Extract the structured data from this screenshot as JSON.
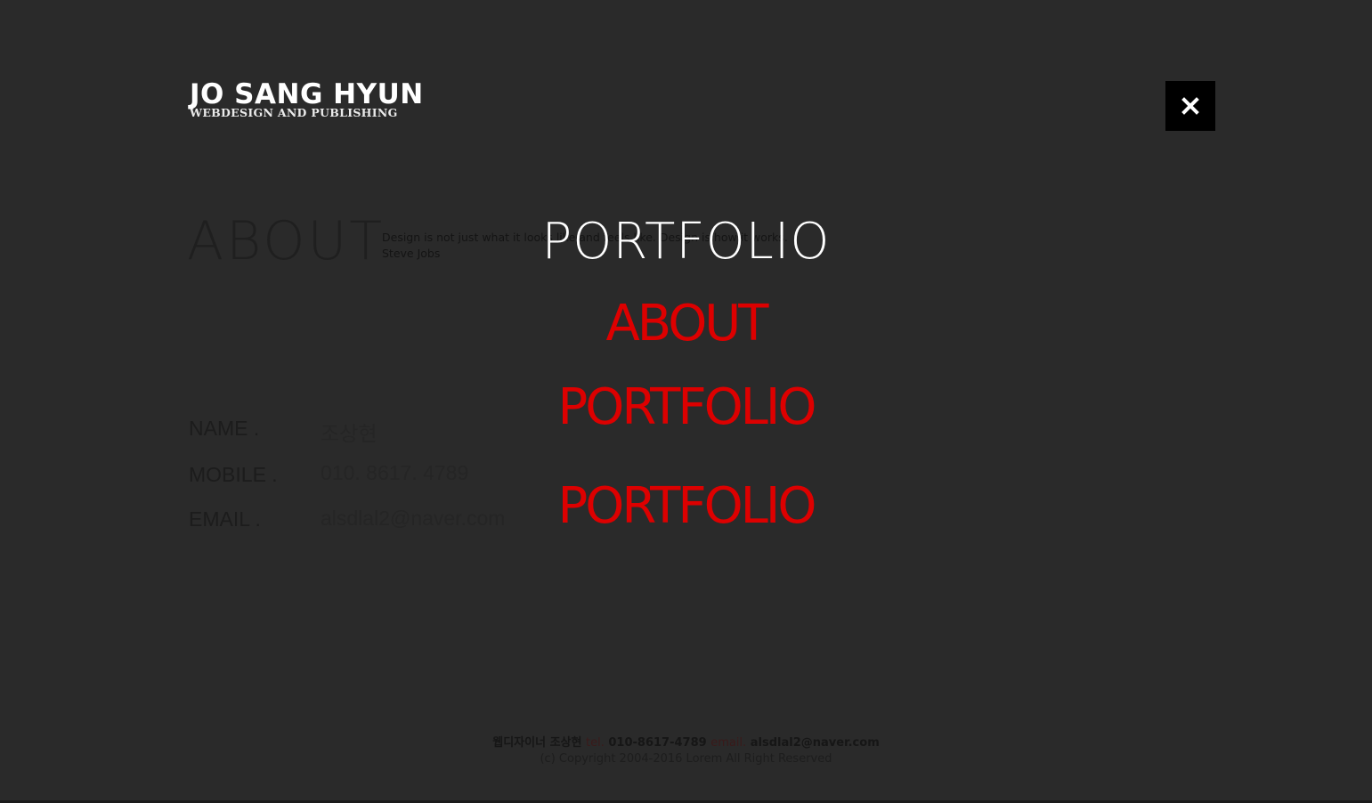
{
  "header": {
    "logo_name": "JO SANG HYUN",
    "logo_sub": "WEBDESIGN AND PUBLISHING",
    "close_icon": "close-icon"
  },
  "menu": {
    "items": [
      {
        "label": "PORTFOLIO",
        "color": "#ffffff"
      },
      {
        "label": "ABOUT",
        "color": "#dd0000"
      },
      {
        "label": "PORTFOLIO",
        "color": "#dd0000"
      },
      {
        "label": "PORTFOLIO",
        "color": "#dd0000"
      }
    ]
  },
  "about": {
    "title": "ABOUT",
    "quote_line1": "Design is not just what it looks like and feels like. Design is how it works.",
    "quote_line2": "Steve Jobs"
  },
  "info": {
    "name_label": "NAME .",
    "name_value": "조상현",
    "mobile_label": "MOBILE .",
    "mobile_value": "010. 8617. 4789",
    "email_label": "EMAIL .",
    "email_value": "alsdlal2@naver.com"
  },
  "footer": {
    "designer": "웹디자이너 조상현",
    "tel_label": "tel.",
    "tel_value": "010-8617-4789",
    "email_label": "email.",
    "email_value": "alsdlal2@naver.com",
    "copyright": "(c) Copyright 2004-2016 Lorem All Right Reserved"
  }
}
